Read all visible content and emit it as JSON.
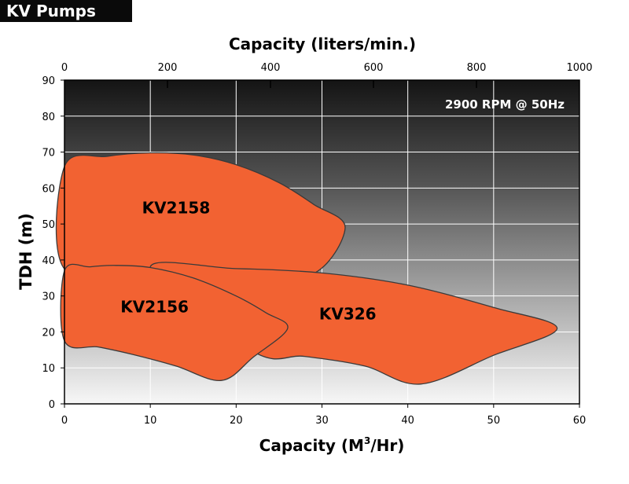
{
  "header": {
    "brand": "KV Pumps"
  },
  "chart_data": {
    "type": "area",
    "subtitle": "2900 RPM @ 50Hz",
    "xlabel": "Capacity (M",
    "xlabel_sup": "3",
    "xlabel_tail": "/Hr)",
    "x2label": "Capacity (liters/min.)",
    "ylabel": "TDH (m)",
    "xlim": [
      0,
      60
    ],
    "ylim": [
      0,
      90
    ],
    "x2lim": [
      0,
      1000
    ],
    "xticks": [
      0,
      10,
      20,
      30,
      40,
      50,
      60
    ],
    "yticks": [
      0,
      10,
      20,
      30,
      40,
      50,
      60,
      70,
      80,
      90
    ],
    "x2ticks": [
      0,
      200,
      400,
      600,
      800,
      1000
    ],
    "grid": true,
    "colors": {
      "curve_fill": "#f26232",
      "curve_stroke": "#3a3a3a",
      "panel_top": "#141414",
      "panel_bottom": "#f7f7f7"
    },
    "series": [
      {
        "name": "KV2158",
        "label_at": [
          13,
          53
        ],
        "points": [
          [
            0,
            66
          ],
          [
            5,
            68.8
          ],
          [
            10,
            69.8
          ],
          [
            15,
            69.2
          ],
          [
            20,
            66.5
          ],
          [
            25,
            61.5
          ],
          [
            29,
            55.5
          ],
          [
            32.7,
            49
          ],
          [
            28.8,
            36
          ],
          [
            20,
            36.5
          ],
          [
            10,
            37
          ],
          [
            0,
            37.5
          ]
        ]
      },
      {
        "name": "KV326",
        "label_at": [
          33,
          23.5
        ],
        "points": [
          [
            10,
            37.6
          ],
          [
            20,
            37.6
          ],
          [
            30,
            36.4
          ],
          [
            40,
            33
          ],
          [
            50,
            26.8
          ],
          [
            57.4,
            21
          ],
          [
            50,
            13.5
          ],
          [
            41.5,
            5.5
          ],
          [
            35,
            10.5
          ],
          [
            28,
            13.2
          ],
          [
            22,
            14.5
          ]
        ]
      },
      {
        "name": "KV2156",
        "label_at": [
          10.5,
          25.5
        ],
        "points": [
          [
            0,
            37
          ],
          [
            3,
            38.1
          ],
          [
            6,
            38.5
          ],
          [
            10,
            37.9
          ],
          [
            15,
            35
          ],
          [
            20,
            30
          ],
          [
            23.5,
            25.3
          ],
          [
            26,
            21
          ],
          [
            22,
            13
          ],
          [
            18.3,
            6.5
          ],
          [
            13,
            10.5
          ],
          [
            8,
            13.7
          ],
          [
            4,
            15.8
          ],
          [
            0,
            17.5
          ]
        ]
      }
    ]
  }
}
